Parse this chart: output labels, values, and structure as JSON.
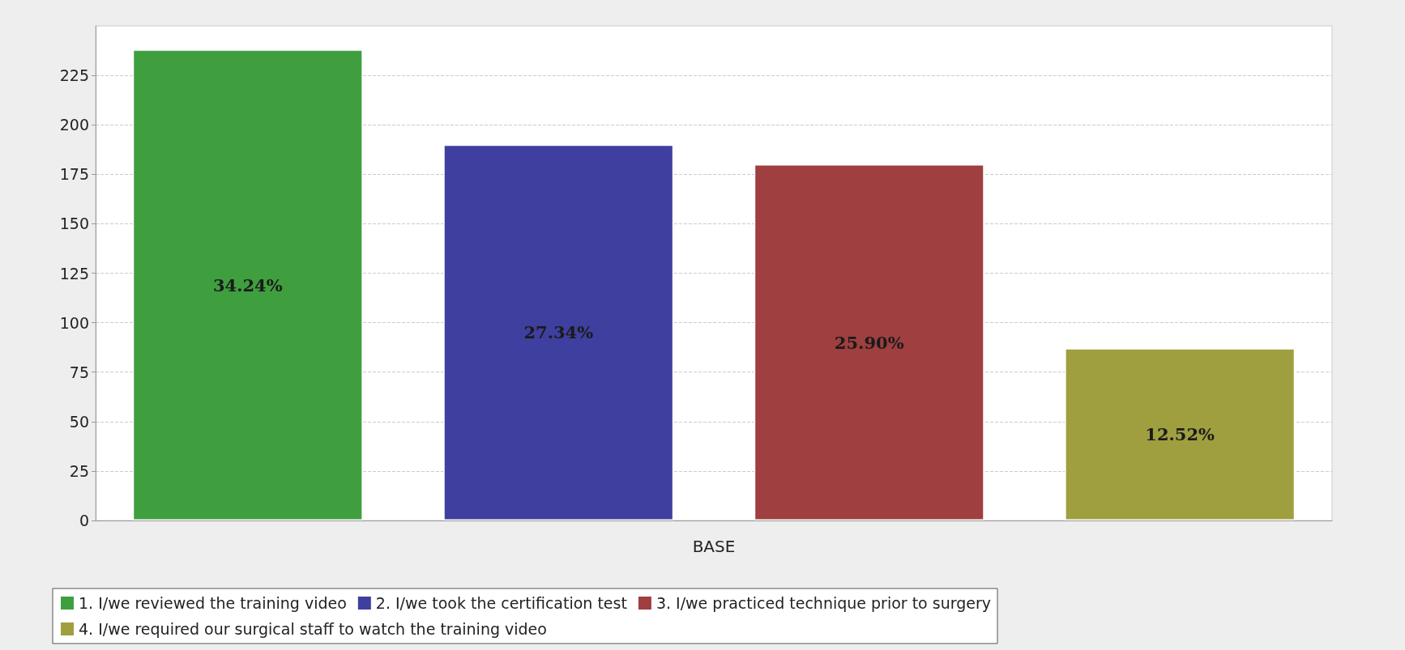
{
  "chart_data": {
    "type": "bar",
    "categories": [
      "BASE"
    ],
    "series": [
      {
        "name": "1. I/we reviewed the training video",
        "color": "#3f9f3f",
        "values": [
          238
        ]
      },
      {
        "name": "2. I/we took the certification test",
        "color": "#3f3f9f",
        "values": [
          190
        ]
      },
      {
        "name": "3. I/we practiced technique prior to surgery",
        "color": "#9f3f3f",
        "values": [
          180
        ]
      },
      {
        "name": "4. I/we required our surgical staff to watch the training video",
        "color": "#9f9f3f",
        "values": [
          87
        ]
      }
    ],
    "annotations": [
      "34.24%",
      "27.34%",
      "25.90%",
      "12.52%"
    ],
    "ylim": [
      0,
      250
    ],
    "yticks": [
      0,
      25,
      50,
      75,
      100,
      125,
      150,
      175,
      200,
      225
    ],
    "grid": "y",
    "legend": "bottom"
  }
}
